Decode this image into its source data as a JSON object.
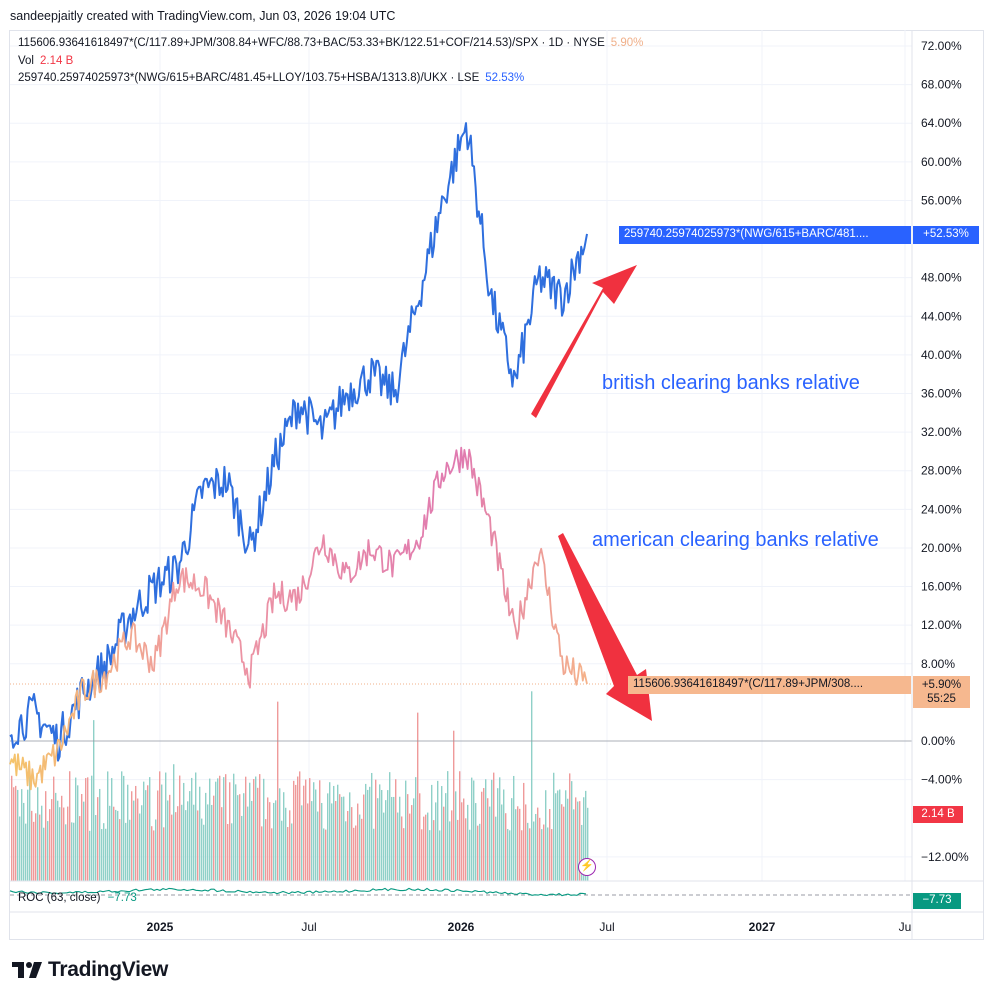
{
  "header": {
    "credit": "sandeepjaitly created with TradingView.com, Jun 03, 2026 19:04 UTC"
  },
  "legend": {
    "us_symbol": "115606.93641618497*(C/117.89+JPM/308.84+WFC/88.73+BAC/53.33+BK/122.51+COF/214.53)/SPX · 1D · NYSE",
    "us_value": "5.90%",
    "vol_label": "Vol",
    "vol_value": "2.14 B",
    "uk_symbol": "259740.25974025973*(NWG/615+BARC/481.45+LLOY/103.75+HSBA/1313.8)/UKX · LSE",
    "uk_value": "52.53%"
  },
  "annotations": {
    "british": "british clearing banks relative",
    "american": "american clearing banks relative"
  },
  "price_tags": {
    "uk_name": "259740.25974025973*(NWG/615+BARC/481....",
    "uk_value": "+52.53%",
    "us_name": "115606.93641618497*(C/117.89+JPM/308....",
    "us_value": "+5.90%",
    "us_countdown": "55:25",
    "vol_value": "2.14 B",
    "roc_value": "−7.73"
  },
  "roc": {
    "label": "ROC (63, close)",
    "value": "−7.73"
  },
  "logo": {
    "text": "TradingView"
  },
  "colors": {
    "uk_line": "#2f6fde",
    "us_line_start": "#f5c46a",
    "us_line_mid": "#ef9aa0",
    "us_line_peak": "#e07ab0",
    "vol_up": "#8fd0c8",
    "vol_down": "#ef9a9a",
    "arrow": "#f0313f",
    "roc_line": "#089981"
  },
  "chart_data": {
    "type": "line",
    "y_axis_unit": "%",
    "ylim": [
      -14,
      74
    ],
    "y_ticks": [
      "72.00%",
      "68.00%",
      "64.00%",
      "60.00%",
      "56.00%",
      "48.00%",
      "44.00%",
      "40.00%",
      "36.00%",
      "32.00%",
      "28.00%",
      "24.00%",
      "20.00%",
      "16.00%",
      "12.00%",
      "8.00%",
      "0.00%",
      "−4.00%",
      "−12.00%"
    ],
    "x_ticks": [
      "2025",
      "Jul",
      "2026",
      "Jul",
      "2027",
      "Ju"
    ],
    "series": [
      {
        "name": "259740.25974025973*(NWG/615+BARC/481.45+LLOY/103.75+HSBA/1313.8)/UKX",
        "x": [
          "2024-06",
          "2024-07",
          "2024-08",
          "2024-09",
          "2024-10",
          "2024-11",
          "2024-12",
          "2025-01",
          "2025-02",
          "2025-03",
          "2025-04",
          "2025-05",
          "2025-06",
          "2025-07",
          "2025-08",
          "2025-09",
          "2025-10",
          "2025-11",
          "2025-12",
          "2026-01",
          "2026-02",
          "2026-03",
          "2026-04",
          "2026-05",
          "2026-06"
        ],
        "values": [
          1,
          3,
          0,
          5,
          8,
          13,
          16,
          18,
          26,
          27,
          20,
          29,
          35,
          32,
          36,
          38,
          36,
          46,
          56,
          64,
          46,
          37,
          48,
          46,
          52.53
        ]
      },
      {
        "name": "115606.93641618497*(C/117.89+JPM/308.84+WFC/88.73+BAC/53.33+BK/122.51+COF/214.53)/SPX",
        "x": [
          "2024-06",
          "2024-07",
          "2024-08",
          "2024-09",
          "2024-10",
          "2024-11",
          "2024-12",
          "2025-01",
          "2025-02",
          "2025-03",
          "2025-04",
          "2025-05",
          "2025-06",
          "2025-07",
          "2025-08",
          "2025-09",
          "2025-10",
          "2025-11",
          "2025-12",
          "2026-01",
          "2026-02",
          "2026-03",
          "2026-04",
          "2026-05",
          "2026-06"
        ],
        "values": [
          -2,
          -4,
          -1,
          5,
          7,
          11,
          8,
          17,
          16,
          12,
          7,
          15,
          15,
          21,
          17,
          20,
          18,
          21,
          28,
          30,
          22,
          11,
          20,
          8,
          5.9
        ]
      }
    ]
  }
}
